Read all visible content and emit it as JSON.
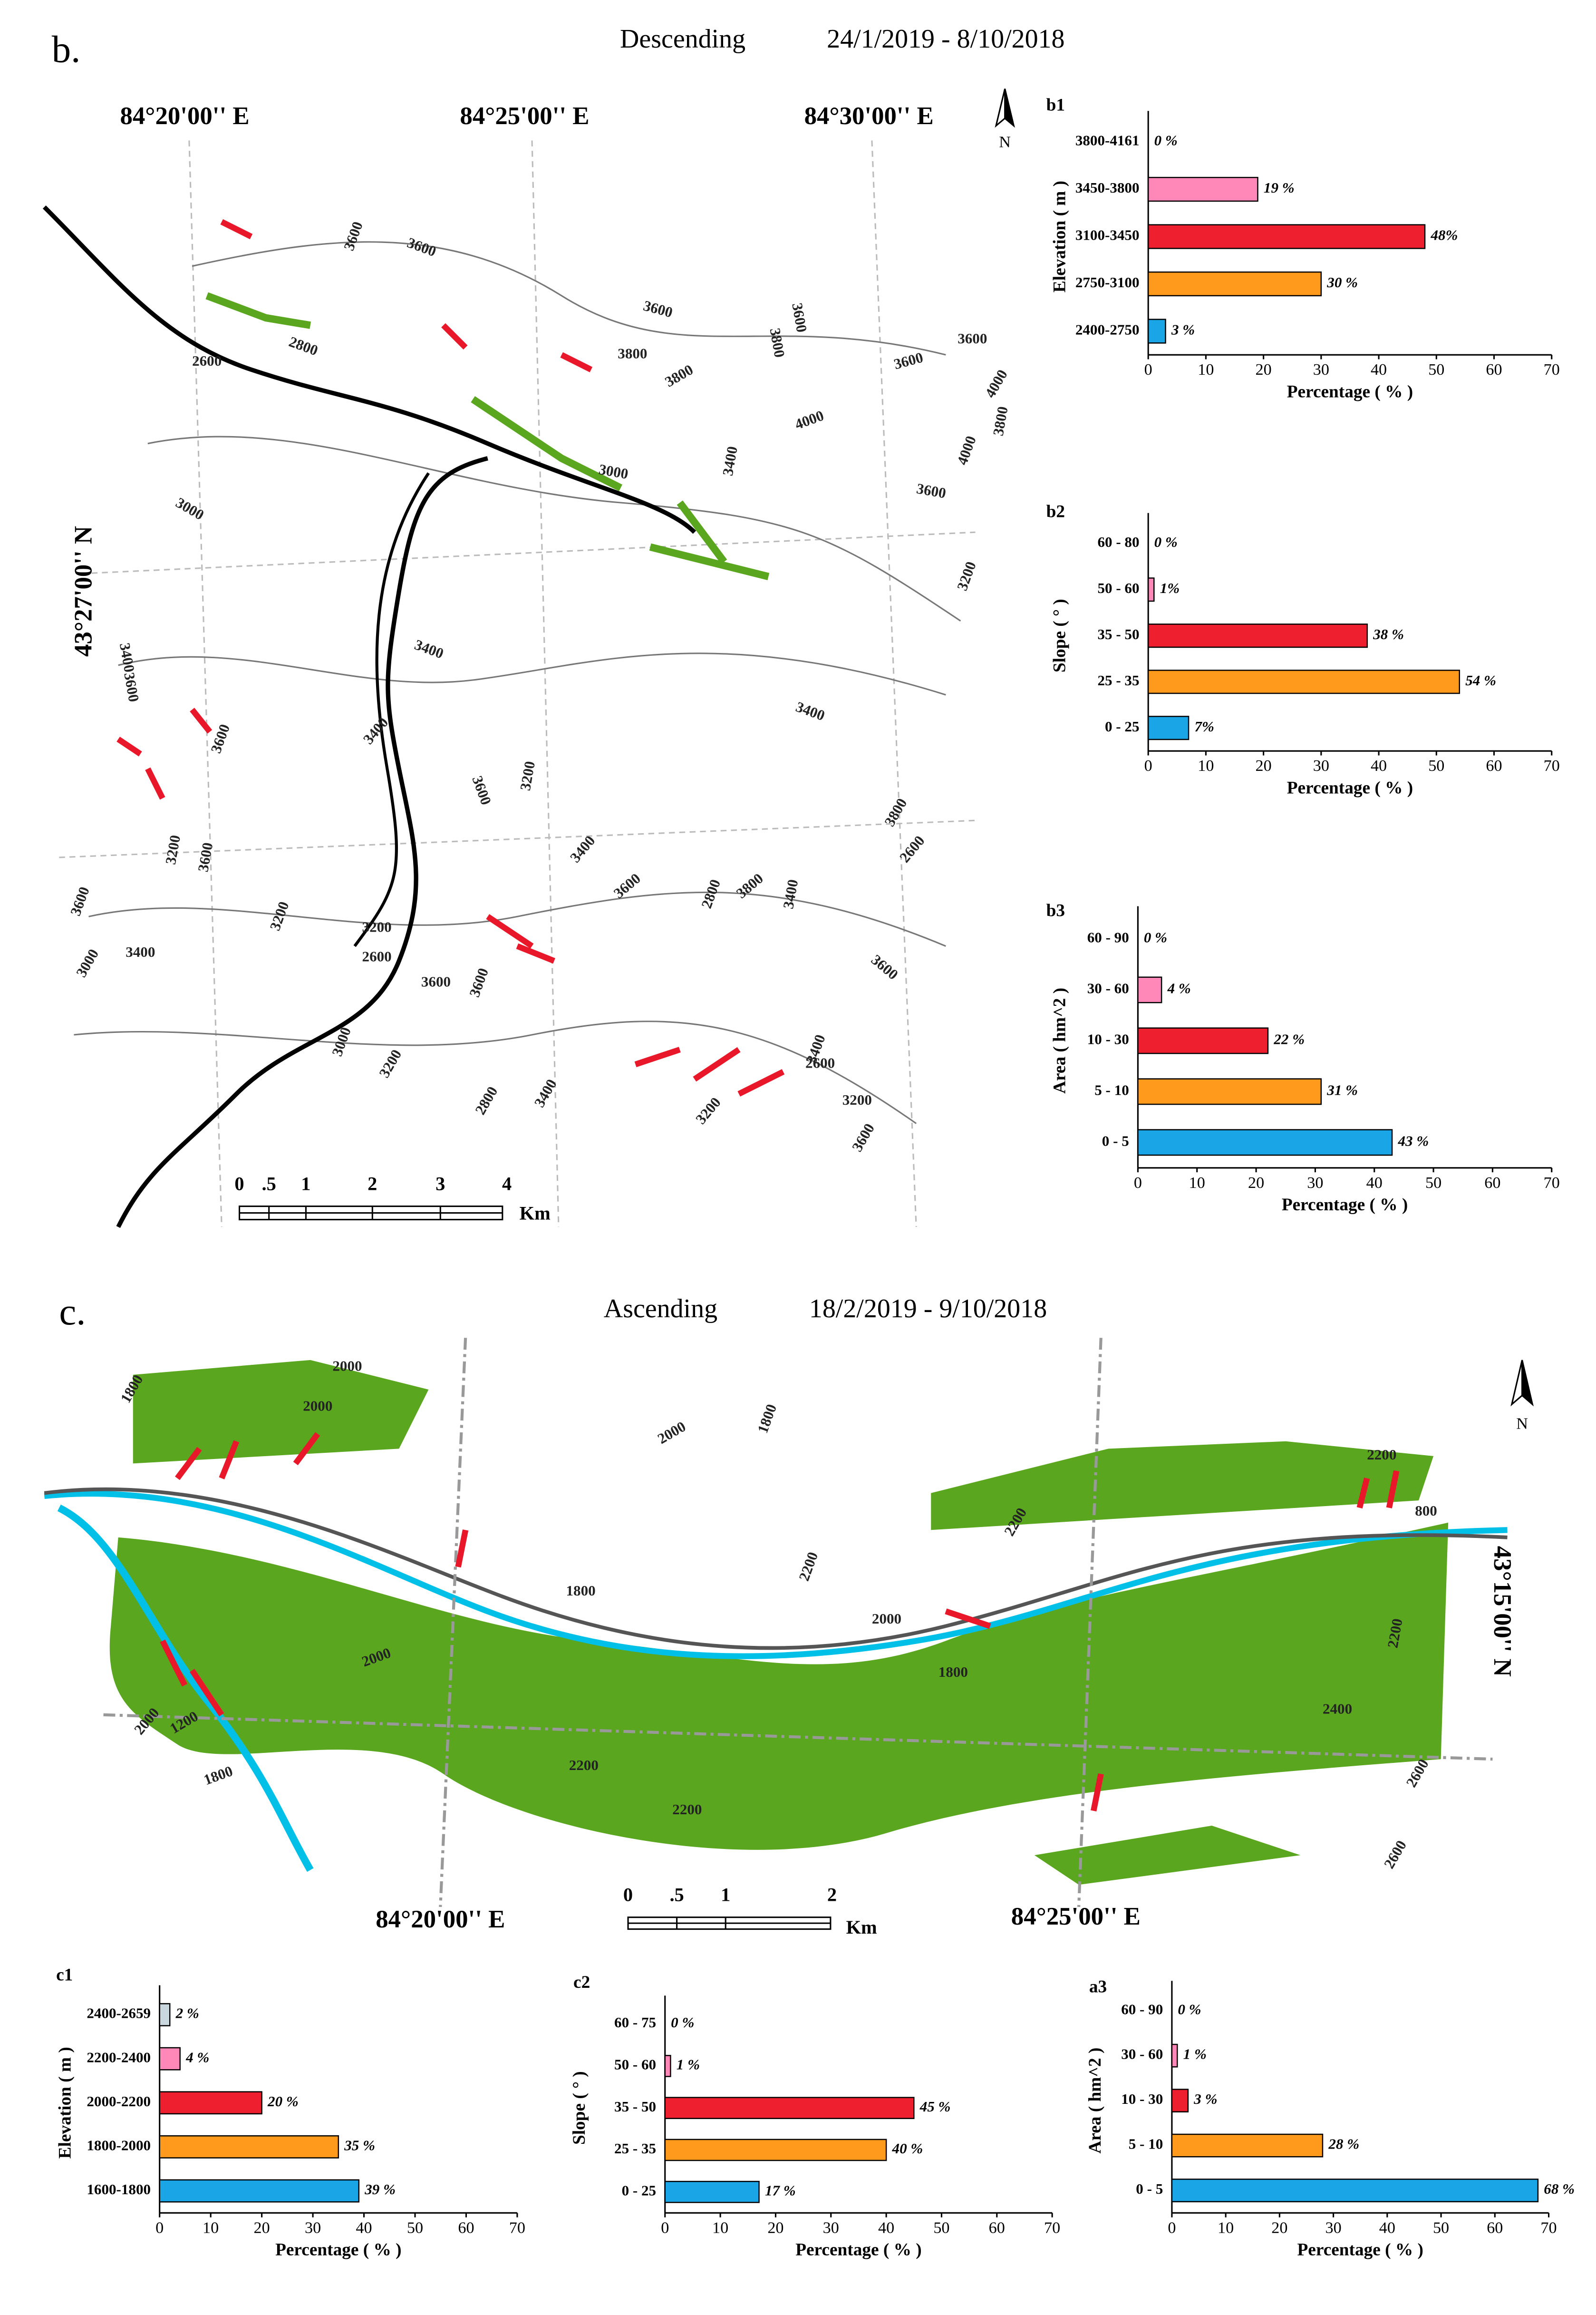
{
  "maps": [
    {
      "label": "b.",
      "title": "Descending",
      "dates": "24/1/2019 - 8/10/2018",
      "lon_labels": [
        "84°20'00'' E",
        "84°25'00'' E",
        "84°30'00'' E"
      ],
      "lat_label": "43°27'00'' N",
      "north": "N",
      "scale_labels": [
        "0",
        ".5",
        "1",
        "2",
        "3",
        "4"
      ],
      "scale_unit": "Km",
      "contours": [
        "3600",
        "3600",
        "2800",
        "2600",
        "3600",
        "3600",
        "3800",
        "3800",
        "3800",
        "3600",
        "3600",
        "4000",
        "4000",
        "3800",
        "4000",
        "3600",
        "3400",
        "3000",
        "3000",
        "3200",
        "3400",
        "3600",
        "3400",
        "3600",
        "3400",
        "3600",
        "3200",
        "3400",
        "3400",
        "3600",
        "3200",
        "3600",
        "3800",
        "2600",
        "2800",
        "3800",
        "3400",
        "3600",
        "3600",
        "3000",
        "3400",
        "3200",
        "3200",
        "2600",
        "3000",
        "3200",
        "3600",
        "3600",
        "3400",
        "2800",
        "3400",
        "3200",
        "2600",
        "3200",
        "3600"
      ]
    },
    {
      "label": "c.",
      "title": "Ascending",
      "dates": "18/2/2019 - 9/10/2018",
      "lon_labels": [
        "84°20'00'' E",
        "84°25'00'' E"
      ],
      "lat_label": "43°15'00'' N",
      "north": "N",
      "scale_labels": [
        "0",
        ".5",
        "1",
        "2"
      ],
      "scale_unit": "Km",
      "contours": [
        "1800",
        "2000",
        "2000",
        "2000",
        "1800",
        "2200",
        "800",
        "2200",
        "2200",
        "1800",
        "2000",
        "1800",
        "2000",
        "2200",
        "2000",
        "1200",
        "1800",
        "2400",
        "2200",
        "2200",
        "2600",
        "2600"
      ]
    }
  ],
  "chart_data": [
    {
      "type": "bar",
      "orientation": "horizontal",
      "title": "b1",
      "ylabel": "Elevation ( m )",
      "xlabel": "Percentage ( % )",
      "categories": [
        "2400-2750",
        "2750-3100",
        "3100-3450",
        "3450-3800",
        "3800-4161"
      ],
      "values": [
        3,
        30,
        48,
        19,
        0
      ],
      "value_labels": [
        "3 %",
        "30 %",
        "48%",
        "19 %",
        "0 %"
      ],
      "colors": [
        "#1aa6e6",
        "#ff9a1c",
        "#ee2030",
        "#ff88b8",
        "#ffffff"
      ],
      "xlim": [
        0,
        70
      ],
      "xticks": [
        0,
        10,
        20,
        30,
        40,
        50,
        60,
        70
      ]
    },
    {
      "type": "bar",
      "orientation": "horizontal",
      "title": "b2",
      "ylabel": "Slope ( ° )",
      "xlabel": "Percentage ( % )",
      "categories": [
        "0 - 25",
        "25 - 35",
        "35 - 50",
        "50 - 60",
        "60 - 80"
      ],
      "values": [
        7,
        54,
        38,
        1,
        0
      ],
      "value_labels": [
        "7%",
        "54 %",
        "38 %",
        "1%",
        "0 %"
      ],
      "colors": [
        "#1aa6e6",
        "#ff9a1c",
        "#ee2030",
        "#ff88b8",
        "#ffffff"
      ],
      "xlim": [
        0,
        70
      ],
      "xticks": [
        0,
        10,
        20,
        30,
        40,
        50,
        60,
        70
      ]
    },
    {
      "type": "bar",
      "orientation": "horizontal",
      "title": "b3",
      "ylabel": "Area ( hm^2 )",
      "xlabel": "Percentage ( % )",
      "categories": [
        "0 - 5",
        "5 - 10",
        "10 - 30",
        "30 - 60",
        "60 - 90"
      ],
      "values": [
        43,
        31,
        22,
        4,
        0
      ],
      "value_labels": [
        "43 %",
        "31 %",
        "22 %",
        "4 %",
        "0 %"
      ],
      "colors": [
        "#1aa6e6",
        "#ff9a1c",
        "#ee2030",
        "#ff88b8",
        "#ffffff"
      ],
      "xlim": [
        0,
        70
      ],
      "xticks": [
        0,
        10,
        20,
        30,
        40,
        50,
        60,
        70
      ]
    },
    {
      "type": "bar",
      "orientation": "horizontal",
      "title": "c1",
      "ylabel": "Elevation ( m )",
      "xlabel": "Percentage ( % )",
      "categories": [
        "1600-1800",
        "1800-2000",
        "2000-2200",
        "2200-2400",
        "2400-2659"
      ],
      "values": [
        39,
        35,
        20,
        4,
        2
      ],
      "value_labels": [
        "39 %",
        "35 %",
        "20 %",
        "4 %",
        "2 %"
      ],
      "colors": [
        "#1aa6e6",
        "#ff9a1c",
        "#ee2030",
        "#ff88b8",
        "#c8d8de"
      ],
      "xlim": [
        0,
        70
      ],
      "xticks": [
        0,
        10,
        20,
        30,
        40,
        50,
        60,
        70
      ]
    },
    {
      "type": "bar",
      "orientation": "horizontal",
      "title": "c2",
      "ylabel": "Slope ( ° )",
      "xlabel": "Percentage ( % )",
      "categories": [
        "0 - 25",
        "25 - 35",
        "35 - 50",
        "50 - 60",
        "60 - 75"
      ],
      "values": [
        17,
        40,
        45,
        1,
        0
      ],
      "value_labels": [
        "17 %",
        "40 %",
        "45 %",
        "1 %",
        "0 %"
      ],
      "colors": [
        "#1aa6e6",
        "#ff9a1c",
        "#ee2030",
        "#ff88b8",
        "#ffffff"
      ],
      "xlim": [
        0,
        70
      ],
      "xticks": [
        0,
        10,
        20,
        30,
        40,
        50,
        60,
        70
      ]
    },
    {
      "type": "bar",
      "orientation": "horizontal",
      "title": "a3",
      "ylabel": "Area ( hm^2 )",
      "xlabel": "Percentage ( % )",
      "categories": [
        "0 - 5",
        "5 - 10",
        "10 - 30",
        "30 - 60",
        "60 - 90"
      ],
      "values": [
        68,
        28,
        3,
        1,
        0
      ],
      "value_labels": [
        "68 %",
        "28 %",
        "3 %",
        "1 %",
        "0 %"
      ],
      "colors": [
        "#1aa6e6",
        "#ff9a1c",
        "#ee2030",
        "#ff88b8",
        "#ffffff"
      ],
      "xlim": [
        0,
        70
      ],
      "xticks": [
        0,
        10,
        20,
        30,
        40,
        50,
        60,
        70
      ]
    }
  ]
}
